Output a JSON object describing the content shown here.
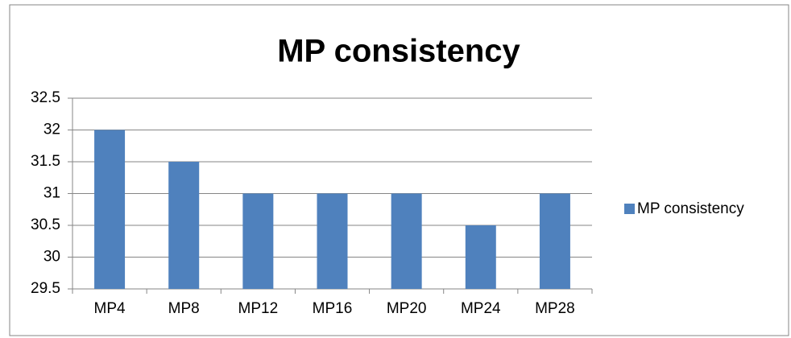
{
  "chart_data": {
    "type": "bar",
    "title": "MP consistency",
    "categories": [
      "MP4",
      "MP8",
      "MP12",
      "MP16",
      "MP20",
      "MP24",
      "MP28"
    ],
    "series": [
      {
        "name": "MP consistency",
        "color": "#4f81bd",
        "values": [
          32,
          31.5,
          31,
          31,
          31,
          30.5,
          31
        ]
      }
    ],
    "ylim": [
      29.5,
      32.5
    ],
    "yticks": [
      29.5,
      30,
      30.5,
      31,
      31.5,
      32,
      32.5
    ],
    "grid": true,
    "legend": "right"
  }
}
